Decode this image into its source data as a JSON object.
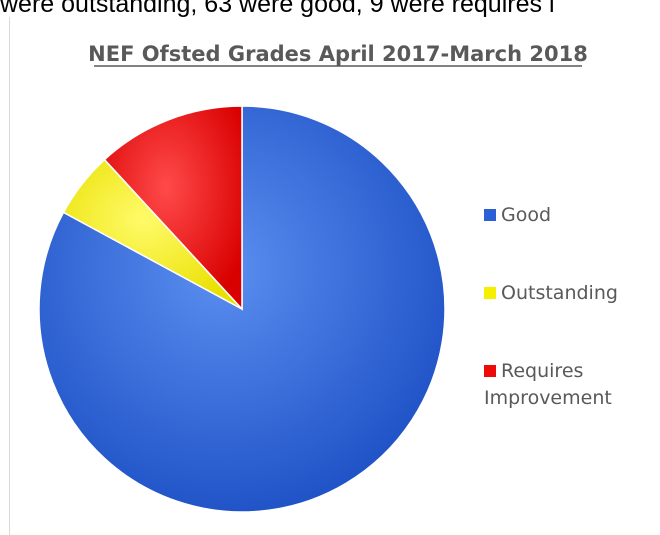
{
  "top_text": "were outstanding, 63 were good, 9 were requires i",
  "colors": {
    "good": "#2a5fd6",
    "outstanding": "#f5f000",
    "requires_improvement": "#ef0a0a"
  },
  "chart_data": {
    "type": "pie",
    "title": "NEF Ofsted Grades April 2017-March 2018",
    "legend_position": "right",
    "series": [
      {
        "name": "Good",
        "value": 63,
        "color": "#2a5fd6"
      },
      {
        "name": "Outstanding",
        "value": 4,
        "color": "#f5f000"
      },
      {
        "name": "Requires Improvement",
        "value": 9,
        "color": "#ef0a0a"
      }
    ],
    "legend": [
      {
        "lines": [
          "Good"
        ],
        "color": "#2a5fd6"
      },
      {
        "lines": [
          "Outstanding"
        ],
        "color": "#f5f000"
      },
      {
        "lines": [
          "Requires",
          "Improvement"
        ],
        "color": "#ef0a0a"
      }
    ]
  }
}
